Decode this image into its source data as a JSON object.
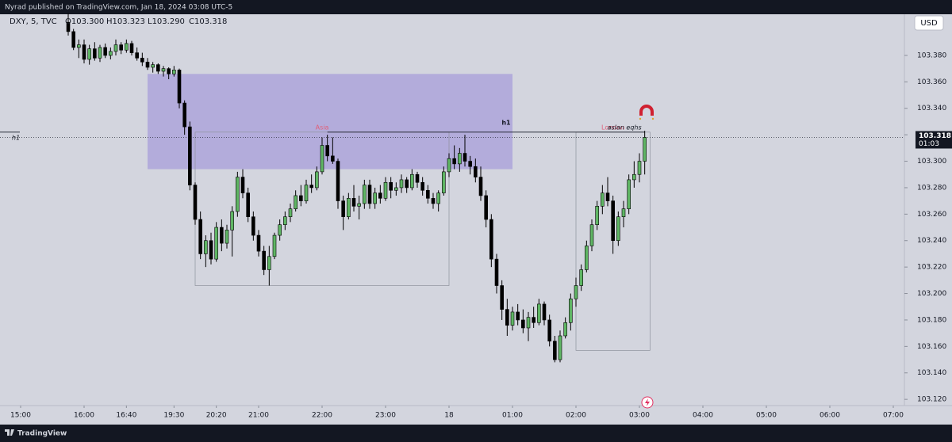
{
  "header": {
    "published": "Nyrad published on TradingView.com, Jan 18, 2024 03:08 UTC-5",
    "footer_brand": "TradingView"
  },
  "chart_data": {
    "type": "candlestick",
    "symbol": "DXY, 5, TVC",
    "ohlc_legend": [
      "O103.300",
      "H103.323",
      "L103.290",
      "C103.318"
    ],
    "currency": "USD",
    "last_price": 103.318,
    "countdown": "01:03",
    "up_color": "#5fb564",
    "down_color": "#000000",
    "xlim": [
      -3.9,
      167.1
    ],
    "ylim": [
      103.1153,
      103.4111
    ],
    "yticks": [
      {
        "value": 103.12,
        "label": "103.120"
      },
      {
        "value": 103.14,
        "label": "103.140"
      },
      {
        "value": 103.16,
        "label": "103.160"
      },
      {
        "value": 103.18,
        "label": "103.180"
      },
      {
        "value": 103.2,
        "label": "103.200"
      },
      {
        "value": 103.22,
        "label": "103.220"
      },
      {
        "value": 103.24,
        "label": "103.240"
      },
      {
        "value": 103.26,
        "label": "103.260"
      },
      {
        "value": 103.28,
        "label": "103.280"
      },
      {
        "value": 103.3,
        "label": "103.300"
      },
      {
        "value": 103.32,
        "label": "103.320"
      },
      {
        "value": 103.34,
        "label": "103.340"
      },
      {
        "value": 103.36,
        "label": "103.360"
      },
      {
        "value": 103.38,
        "label": "103.380"
      }
    ],
    "xticks": [
      {
        "value": 0,
        "label": "15:00"
      },
      {
        "value": 12,
        "label": "16:00"
      },
      {
        "value": 20,
        "label": "16:40"
      },
      {
        "value": 29,
        "label": "19:30"
      },
      {
        "value": 37,
        "label": "20:20"
      },
      {
        "value": 45,
        "label": "21:00"
      },
      {
        "value": 57,
        "label": "22:00"
      },
      {
        "value": 69,
        "label": "23:00"
      },
      {
        "value": 81,
        "label": "18"
      },
      {
        "value": 93,
        "label": "01:00"
      },
      {
        "value": 105,
        "label": "02:00"
      },
      {
        "value": 117,
        "label": "03:00"
      },
      {
        "value": 129,
        "label": "04:00"
      },
      {
        "value": 141,
        "label": "05:00"
      },
      {
        "value": 153,
        "label": "06:00"
      },
      {
        "value": 165,
        "label": "07:00"
      }
    ],
    "zone": {
      "x": [
        24,
        93
      ],
      "y": [
        103.294,
        103.366
      ],
      "color": "#b3acdb"
    },
    "sessions": [
      {
        "label": "Asia",
        "x": [
          33,
          81
        ],
        "y": [
          103.206,
          103.322
        ],
        "color": "#e0607a"
      },
      {
        "label": "London",
        "x": [
          105,
          119
        ],
        "y": [
          103.157,
          103.322
        ],
        "color": "#e0607a"
      }
    ],
    "level": {
      "label": "h1",
      "value": 103.322,
      "x": [
        58,
        118
      ],
      "note": "aslan eqhs"
    },
    "x": [
      9,
      10,
      11,
      12,
      13,
      14,
      15,
      16,
      17,
      18,
      19,
      20,
      21,
      22,
      23,
      24,
      25,
      26,
      27,
      28,
      29,
      30,
      31,
      32,
      33,
      34,
      35,
      36,
      37,
      38,
      39,
      40,
      41,
      42,
      43,
      44,
      45,
      46,
      47,
      48,
      49,
      50,
      51,
      52,
      53,
      54,
      55,
      56,
      57,
      58,
      59,
      60,
      61,
      62,
      63,
      64,
      65,
      66,
      67,
      68,
      69,
      70,
      71,
      72,
      73,
      74,
      75,
      76,
      77,
      78,
      79,
      80,
      81,
      82,
      83,
      84,
      85,
      86,
      87,
      88,
      89,
      90,
      91,
      92,
      93,
      94,
      95,
      96,
      97,
      98,
      99,
      100,
      101,
      102,
      103,
      104,
      105,
      106,
      107,
      108,
      109,
      110,
      111,
      112,
      113,
      114,
      115,
      116,
      117,
      118
    ],
    "ohlc": [
      [
        103.405,
        103.412,
        103.395,
        103.398
      ],
      [
        103.398,
        103.4,
        103.384,
        103.386
      ],
      [
        103.386,
        103.392,
        103.378,
        103.388
      ],
      [
        103.388,
        103.392,
        103.374,
        103.377
      ],
      [
        103.377,
        103.388,
        103.373,
        103.385
      ],
      [
        103.385,
        103.39,
        103.376,
        103.378
      ],
      [
        103.378,
        103.388,
        103.375,
        103.386
      ],
      [
        103.386,
        103.389,
        103.378,
        103.38
      ],
      [
        103.38,
        103.386,
        103.377,
        103.383
      ],
      [
        103.383,
        103.392,
        103.38,
        103.388
      ],
      [
        103.388,
        103.39,
        103.381,
        103.384
      ],
      [
        103.384,
        103.392,
        103.382,
        103.389
      ],
      [
        103.389,
        103.391,
        103.38,
        103.382
      ],
      [
        103.382,
        103.386,
        103.376,
        103.378
      ],
      [
        103.378,
        103.382,
        103.372,
        103.375
      ],
      [
        103.375,
        103.378,
        103.369,
        103.371
      ],
      [
        103.371,
        103.375,
        103.367,
        103.373
      ],
      [
        103.373,
        103.374,
        103.366,
        103.368
      ],
      [
        103.368,
        103.372,
        103.364,
        103.37
      ],
      [
        103.37,
        103.371,
        103.362,
        103.366
      ],
      [
        103.366,
        103.372,
        103.364,
        103.369
      ],
      [
        103.369,
        103.37,
        103.34,
        103.344
      ],
      [
        103.344,
        103.346,
        103.32,
        103.326
      ],
      [
        103.326,
        103.33,
        103.278,
        103.282
      ],
      [
        103.282,
        103.284,
        103.252,
        103.256
      ],
      [
        103.256,
        103.262,
        103.226,
        103.23
      ],
      [
        103.23,
        103.244,
        103.22,
        103.24
      ],
      [
        103.24,
        103.246,
        103.222,
        103.226
      ],
      [
        103.226,
        103.254,
        103.224,
        103.25
      ],
      [
        103.25,
        103.256,
        103.232,
        103.238
      ],
      [
        103.238,
        103.252,
        103.234,
        103.248
      ],
      [
        103.248,
        103.266,
        103.228,
        103.262
      ],
      [
        103.262,
        103.292,
        103.258,
        103.288
      ],
      [
        103.288,
        103.294,
        103.272,
        103.276
      ],
      [
        103.276,
        103.28,
        103.254,
        103.258
      ],
      [
        103.258,
        103.262,
        103.24,
        103.244
      ],
      [
        103.244,
        103.248,
        103.228,
        103.232
      ],
      [
        103.232,
        103.236,
        103.214,
        103.218
      ],
      [
        103.218,
        103.236,
        103.206,
        103.228
      ],
      [
        103.228,
        103.246,
        103.226,
        103.244
      ],
      [
        103.244,
        103.256,
        103.24,
        103.252
      ],
      [
        103.252,
        103.262,
        103.248,
        103.258
      ],
      [
        103.258,
        103.268,
        103.254,
        103.264
      ],
      [
        103.264,
        103.278,
        103.262,
        103.274
      ],
      [
        103.274,
        103.282,
        103.266,
        103.27
      ],
      [
        103.27,
        103.286,
        103.268,
        103.282
      ],
      [
        103.282,
        103.29,
        103.276,
        103.28
      ],
      [
        103.28,
        103.296,
        103.278,
        103.292
      ],
      [
        103.292,
        103.318,
        103.29,
        103.312
      ],
      [
        103.312,
        103.32,
        103.3,
        103.304
      ],
      [
        103.304,
        103.318,
        103.298,
        103.3
      ],
      [
        103.3,
        103.302,
        103.264,
        103.27
      ],
      [
        103.27,
        103.274,
        103.248,
        103.258
      ],
      [
        103.258,
        103.276,
        103.256,
        103.272
      ],
      [
        103.272,
        103.282,
        103.262,
        103.266
      ],
      [
        103.266,
        103.274,
        103.256,
        103.268
      ],
      [
        103.268,
        103.286,
        103.264,
        103.282
      ],
      [
        103.282,
        103.286,
        103.264,
        103.268
      ],
      [
        103.268,
        103.28,
        103.264,
        103.276
      ],
      [
        103.276,
        103.282,
        103.268,
        103.272
      ],
      [
        103.272,
        103.288,
        103.27,
        103.284
      ],
      [
        103.284,
        103.288,
        103.272,
        103.278
      ],
      [
        103.278,
        103.284,
        103.274,
        103.28
      ],
      [
        103.28,
        103.29,
        103.276,
        103.286
      ],
      [
        103.286,
        103.288,
        103.276,
        103.28
      ],
      [
        103.28,
        103.294,
        103.278,
        103.29
      ],
      [
        103.29,
        103.292,
        103.28,
        103.284
      ],
      [
        103.284,
        103.288,
        103.274,
        103.278
      ],
      [
        103.278,
        103.282,
        103.268,
        103.272
      ],
      [
        103.272,
        103.276,
        103.264,
        103.268
      ],
      [
        103.268,
        103.278,
        103.262,
        103.276
      ],
      [
        103.276,
        103.296,
        103.274,
        103.292
      ],
      [
        103.292,
        103.306,
        103.288,
        103.302
      ],
      [
        103.302,
        103.312,
        103.294,
        103.298
      ],
      [
        103.298,
        103.31,
        103.292,
        103.306
      ],
      [
        103.306,
        103.32,
        103.296,
        103.3
      ],
      [
        103.3,
        103.304,
        103.29,
        103.296
      ],
      [
        103.296,
        103.302,
        103.284,
        103.288
      ],
      [
        103.288,
        103.296,
        103.27,
        103.274
      ],
      [
        103.274,
        103.278,
        103.25,
        103.256
      ],
      [
        103.256,
        103.26,
        103.22,
        103.226
      ],
      [
        103.226,
        103.23,
        103.2,
        103.206
      ],
      [
        103.206,
        103.21,
        103.18,
        103.188
      ],
      [
        103.188,
        103.196,
        103.168,
        103.176
      ],
      [
        103.176,
        103.19,
        103.172,
        103.186
      ],
      [
        103.186,
        103.192,
        103.176,
        103.18
      ],
      [
        103.18,
        103.188,
        103.17,
        103.174
      ],
      [
        103.174,
        103.186,
        103.164,
        103.182
      ],
      [
        103.182,
        103.19,
        103.174,
        103.178
      ],
      [
        103.178,
        103.196,
        103.176,
        103.192
      ],
      [
        103.192,
        103.194,
        103.176,
        103.18
      ],
      [
        103.18,
        103.184,
        103.16,
        103.164
      ],
      [
        103.164,
        103.168,
        103.148,
        103.15
      ],
      [
        103.15,
        103.172,
        103.148,
        103.168
      ],
      [
        103.168,
        103.182,
        103.166,
        103.178
      ],
      [
        103.178,
        103.2,
        103.172,
        103.196
      ],
      [
        103.196,
        103.212,
        103.19,
        103.206
      ],
      [
        103.206,
        103.222,
        103.202,
        103.218
      ],
      [
        103.218,
        103.24,
        103.216,
        103.236
      ],
      [
        103.236,
        103.256,
        103.232,
        103.252
      ],
      [
        103.252,
        103.27,
        103.248,
        103.266
      ],
      [
        103.266,
        103.282,
        103.26,
        103.276
      ],
      [
        103.276,
        103.288,
        103.266,
        103.27
      ],
      [
        103.27,
        103.274,
        103.23,
        103.24
      ],
      [
        103.24,
        103.262,
        103.236,
        103.258
      ],
      [
        103.258,
        103.27,
        103.25,
        103.264
      ],
      [
        103.264,
        103.29,
        103.26,
        103.286
      ],
      [
        103.286,
        103.3,
        103.28,
        103.29
      ],
      [
        103.29,
        103.306,
        103.284,
        103.3
      ],
      [
        103.3,
        103.323,
        103.29,
        103.318
      ]
    ]
  }
}
